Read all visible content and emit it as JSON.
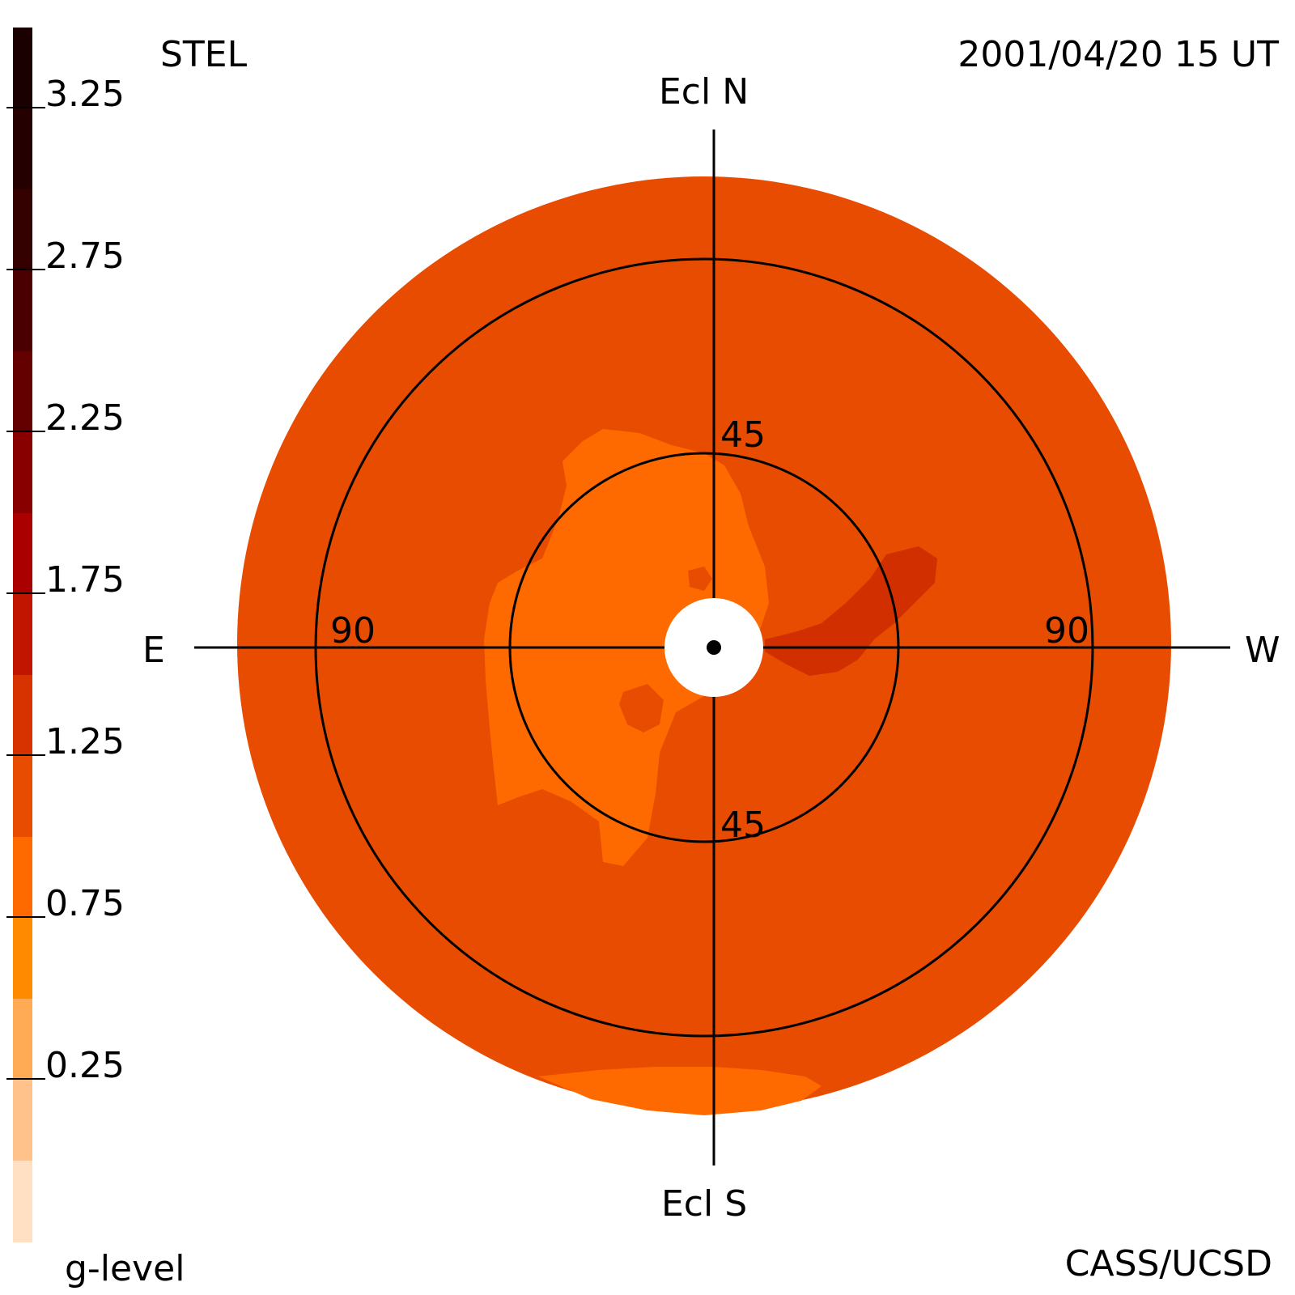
{
  "header": {
    "instrument": "STEL",
    "timestamp": "2001/04/20 15 UT",
    "credit": "CASS/UCSD"
  },
  "colorbar": {
    "title": "g-level",
    "ticks": [
      "3.25",
      "2.75",
      "2.25",
      "1.75",
      "1.25",
      "0.75",
      "0.25"
    ],
    "bands": [
      {
        "level": "3.25-3.50",
        "color": "#1a0000"
      },
      {
        "level": "3.00-3.25",
        "color": "#240000"
      },
      {
        "level": "2.75-3.00",
        "color": "#340000"
      },
      {
        "level": "2.50-2.75",
        "color": "#4a0000"
      },
      {
        "level": "2.25-2.50",
        "color": "#640000"
      },
      {
        "level": "2.00-2.25",
        "color": "#880000"
      },
      {
        "level": "1.75-2.00",
        "color": "#aa0000"
      },
      {
        "level": "1.50-1.75",
        "color": "#c21500"
      },
      {
        "level": "1.25-1.50",
        "color": "#d63300"
      },
      {
        "level": "1.00-1.25",
        "color": "#e84c00"
      },
      {
        "level": "0.75-1.00",
        "color": "#ff6a00"
      },
      {
        "level": "0.50-0.75",
        "color": "#ff8a00"
      },
      {
        "level": "0.25-0.50",
        "color": "#ffaa55"
      },
      {
        "level": "0.00-0.25",
        "color": "#ffc28a"
      },
      {
        "level": "below 0",
        "color": "#ffe0c2"
      }
    ]
  },
  "map": {
    "directions": {
      "north": "Ecl N",
      "south": "Ecl S",
      "east": "E",
      "west": "W"
    },
    "ring_labels": {
      "inner_top": "45",
      "inner_bottom": "45",
      "outer_left": "90",
      "outer_right": "90"
    },
    "colors": {
      "background_level": "#e84c00",
      "low_region": "#ff6a00",
      "high_region": "#d12f00",
      "occulter": "#ffffff",
      "lines": "#000000"
    }
  }
}
